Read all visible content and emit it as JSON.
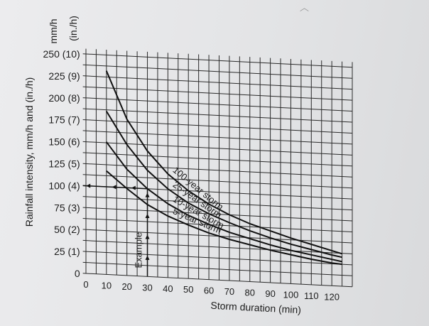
{
  "chart_data": {
    "type": "line",
    "title": "",
    "xlabel": "Storm duration (min)",
    "ylabel": "Rainfall intensity, mm/h and (in./h)",
    "y_unit_mm": "mm/h",
    "y_unit_in": "(in./h)",
    "xlim": [
      0,
      130
    ],
    "ylim": [
      0,
      250
    ],
    "grid": true,
    "x_ticks": [
      "0",
      "10",
      "20",
      "30",
      "40",
      "50",
      "60",
      "70",
      "80",
      "90",
      "100",
      "110",
      "120"
    ],
    "y_ticks": [
      "0",
      "25 (1)",
      "50 (2)",
      "75 (3)",
      "100 (4)",
      "125 (5)",
      "150 (6)",
      "175 (7)",
      "200 (8)",
      "225 (9)",
      "250 (10)"
    ],
    "series": [
      {
        "name": "100-year storm",
        "x": [
          10,
          20,
          30,
          40,
          50,
          60,
          70,
          80,
          90,
          100,
          110,
          120,
          125
        ],
        "y": [
          232,
          178,
          143,
          118,
          100,
          86,
          75,
          66,
          59,
          52,
          46,
          40,
          37
        ]
      },
      {
        "name": "25-year storm",
        "x": [
          10,
          20,
          30,
          40,
          50,
          60,
          70,
          80,
          90,
          100,
          110,
          120,
          125
        ],
        "y": [
          186,
          149,
          121,
          101,
          86,
          75,
          66,
          58,
          51,
          45,
          40,
          35,
          33
        ]
      },
      {
        "name": "10-year storm",
        "x": [
          10,
          20,
          30,
          40,
          50,
          60,
          70,
          80,
          90,
          100,
          110,
          120,
          125
        ],
        "y": [
          151,
          121,
          100,
          84,
          72,
          63,
          55,
          49,
          43,
          38,
          34,
          30,
          28
        ]
      },
      {
        "name": "5-year storm",
        "x": [
          10,
          20,
          30,
          40,
          50,
          60,
          70,
          80,
          90,
          100,
          110,
          120,
          125
        ],
        "y": [
          118,
          99,
          82,
          70,
          61,
          53,
          47,
          42,
          37,
          33,
          29,
          26,
          25
        ]
      }
    ],
    "annotation": {
      "label": "Example",
      "duration": 30,
      "intensity": 100
    }
  },
  "colors": {
    "ink": "#111111",
    "paper": "#e8e9eb"
  }
}
